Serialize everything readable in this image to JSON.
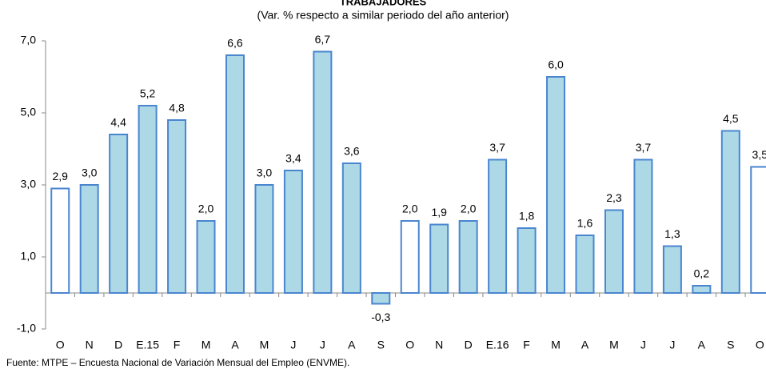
{
  "chart_data": {
    "type": "bar",
    "title": "TRABAJADORES",
    "subtitle": "(Var. % respecto a similar periodo del año anterior)",
    "source": "Fuente: MTPE – Encuesta Nacional de Variación Mensual del Empleo (ENVME).",
    "categories": [
      "O",
      "N",
      "D",
      "E.15",
      "F",
      "M",
      "A",
      "M",
      "J",
      "J",
      "A",
      "S",
      "O",
      "N",
      "D",
      "E.16",
      "F",
      "M",
      "A",
      "M",
      "J",
      "J",
      "A",
      "S",
      "O"
    ],
    "values": [
      2.9,
      3.0,
      4.4,
      5.2,
      4.8,
      2.0,
      6.6,
      3.0,
      3.4,
      6.7,
      3.6,
      -0.3,
      2.0,
      1.9,
      2.0,
      3.7,
      1.8,
      6.0,
      1.6,
      2.3,
      3.7,
      1.3,
      0.2,
      4.5,
      3.5
    ],
    "value_labels": [
      "2,9",
      "3,0",
      "4,4",
      "5,2",
      "4,8",
      "2,0",
      "6,6",
      "3,0",
      "3,4",
      "6,7",
      "3,6",
      "-0,3",
      "2,0",
      "1,9",
      "2,0",
      "3,7",
      "1,8",
      "6,0",
      "1,6",
      "2,3",
      "3,7",
      "1,3",
      "0,2",
      "4,5",
      "3,5"
    ],
    "colors": [
      "#ffffff",
      "#add8e6",
      "#add8e6",
      "#add8e6",
      "#add8e6",
      "#add8e6",
      "#add8e6",
      "#add8e6",
      "#add8e6",
      "#add8e6",
      "#add8e6",
      "#add8e6",
      "#ffffff",
      "#add8e6",
      "#add8e6",
      "#add8e6",
      "#add8e6",
      "#add8e6",
      "#add8e6",
      "#add8e6",
      "#add8e6",
      "#add8e6",
      "#add8e6",
      "#add8e6",
      "#ffffff"
    ],
    "border_color": "#4a86d0",
    "ylim": [
      -1,
      7
    ],
    "yticks": [
      {
        "value": -1,
        "label": "-1,0"
      },
      {
        "value": 1,
        "label": "1,0"
      },
      {
        "value": 3,
        "label": "3,0"
      },
      {
        "value": 5,
        "label": "5,0"
      },
      {
        "value": 7,
        "label": "7,0"
      }
    ],
    "grid": false
  }
}
